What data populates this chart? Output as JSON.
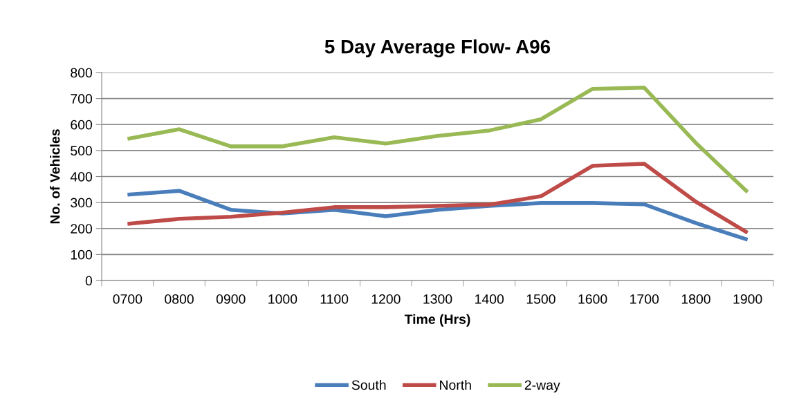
{
  "chart_data": {
    "type": "line",
    "title": "5 Day Average Flow- A96",
    "xlabel": "Time (Hrs)",
    "ylabel": "No. of Vehicles",
    "categories": [
      "0700",
      "0800",
      "0900",
      "1000",
      "1100",
      "1200",
      "1300",
      "1400",
      "1500",
      "1600",
      "1700",
      "1800",
      "1900"
    ],
    "series": [
      {
        "name": "South",
        "color": "#4a7ebb",
        "values": [
          330,
          345,
          272,
          258,
          272,
          247,
          272,
          287,
          298,
          298,
          293,
          221,
          157
        ]
      },
      {
        "name": "North",
        "color": "#be4b48",
        "values": [
          218,
          237,
          245,
          261,
          282,
          282,
          287,
          292,
          324,
          441,
          449,
          303,
          184
        ]
      },
      {
        "name": "2-way",
        "color": "#98b954",
        "values": [
          545,
          582,
          516,
          516,
          551,
          527,
          556,
          577,
          620,
          737,
          742,
          529,
          340
        ]
      }
    ],
    "ylim": [
      0,
      800
    ],
    "yticks": [
      0,
      100,
      200,
      300,
      400,
      500,
      600,
      700,
      800
    ],
    "grid": "y",
    "legend": "bottom",
    "marker": "none",
    "line_style": "solid"
  }
}
